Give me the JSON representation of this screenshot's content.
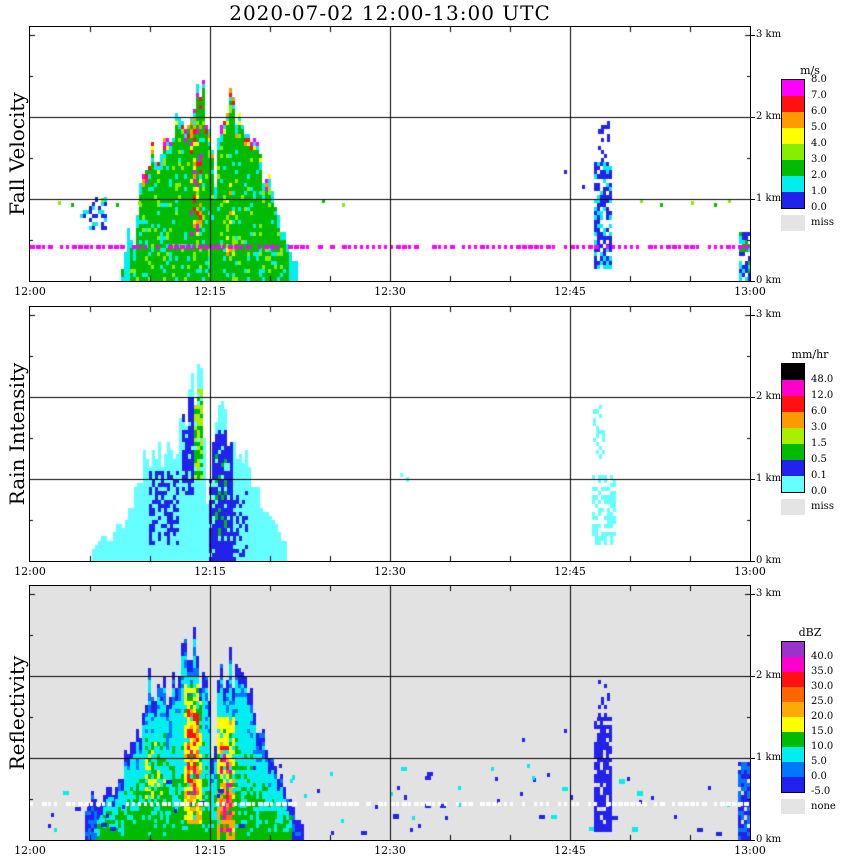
{
  "title": "2020-07-02  12:00-13:00 UTC",
  "x_axis": {
    "ticks": [
      "12:00",
      "12:15",
      "12:30",
      "12:45",
      "13:00"
    ],
    "start_minute": 0,
    "end_minute": 60
  },
  "y_axis": {
    "ticks": [
      "0 km",
      "1 km",
      "2 km",
      "3 km"
    ],
    "max_km": 3.1
  },
  "chart_data": {
    "type": "heatmap",
    "date": "2020-07-02",
    "time_utc_range": [
      "12:00",
      "13:00"
    ],
    "height_km_range": [
      0,
      3
    ],
    "panels": [
      {
        "id": "fall-velocity",
        "ylabel": "Fall Velocity",
        "style": "velocity",
        "background": "#ffffff",
        "colorbar": {
          "unit": "m/s",
          "label_mode": "edges",
          "labels": [
            "8.0",
            "7.0",
            "6.0",
            "5.0",
            "4.0",
            "3.0",
            "2.0",
            "1.0",
            "0.0"
          ],
          "colors": [
            "#ff00ff",
            "#ff1111",
            "#ff9900",
            "#ffff00",
            "#88ee00",
            "#00bb00",
            "#00eeee",
            "#2222ee"
          ],
          "miss_label": "miss",
          "miss_color": "#e4e4e4"
        },
        "bins": {
          "edges": [
            0,
            1,
            2,
            3,
            4,
            5,
            6,
            7,
            9
          ]
        },
        "echo": {
          "tops": [
            [
              7.6,
              0.15
            ],
            [
              8.1,
              0.55
            ],
            [
              8.6,
              0.4
            ],
            [
              9.0,
              1.0
            ],
            [
              9.4,
              1.5
            ],
            [
              9.8,
              1.2
            ],
            [
              10.2,
              1.75
            ],
            [
              10.6,
              1.45
            ],
            [
              11.0,
              1.9
            ],
            [
              11.4,
              1.55
            ],
            [
              11.8,
              1.65
            ],
            [
              12.2,
              2.0
            ],
            [
              12.6,
              1.75
            ],
            [
              13.0,
              2.1
            ],
            [
              13.4,
              2.3
            ],
            [
              13.8,
              2.2
            ],
            [
              14.2,
              2.35
            ],
            [
              14.6,
              2.1
            ],
            [
              15.0,
              1.7
            ],
            [
              15.3,
              0.9
            ],
            [
              15.6,
              1.6
            ],
            [
              16.0,
              2.05
            ],
            [
              16.4,
              2.2
            ],
            [
              16.8,
              1.95
            ],
            [
              17.2,
              2.05
            ],
            [
              17.6,
              1.8
            ],
            [
              18.0,
              1.9
            ],
            [
              18.4,
              1.6
            ],
            [
              18.8,
              1.7
            ],
            [
              19.2,
              1.35
            ],
            [
              19.6,
              1.25
            ],
            [
              20.0,
              1.05
            ],
            [
              20.5,
              0.85
            ],
            [
              21.0,
              0.6
            ],
            [
              21.6,
              0.35
            ],
            [
              22.3,
              0.12
            ]
          ],
          "cores": [
            {
              "t0": 13.3,
              "t1": 14.2,
              "h0": 0.5,
              "h1": 1.9,
              "vmin": 4.0,
              "vmax": 7.5,
              "prob": 0.45
            },
            {
              "t0": 16.3,
              "t1": 17.0,
              "h0": 0.3,
              "h1": 1.2,
              "vmin": 3.5,
              "vmax": 5.5,
              "prob": 0.25
            }
          ]
        },
        "extras": [
          {
            "op": "patch",
            "t0": 4.2,
            "t1": 6.3,
            "h0": 0.62,
            "h1": 1.02,
            "density": 0.45,
            "colors": [
              "#00eeee",
              "#2222ee"
            ]
          },
          {
            "op": "patch",
            "t0": 47.0,
            "t1": 48.3,
            "h0": 0.15,
            "h1": 1.45,
            "density": 0.7,
            "colors": [
              "#2222ee",
              "#2222ee",
              "#00eeee"
            ]
          },
          {
            "op": "patch",
            "t0": 47.3,
            "t1": 48.1,
            "h0": 1.45,
            "h1": 1.95,
            "density": 0.25,
            "colors": [
              "#2222ee"
            ]
          },
          {
            "op": "patch",
            "t0": 59.1,
            "t1": 60.0,
            "h0": 0.0,
            "h1": 0.6,
            "density": 0.8,
            "colors": [
              "#00bb00",
              "#00eeee",
              "#2222ee"
            ]
          },
          {
            "op": "dots",
            "points": [
              [
                2.3,
                0.93,
                "#88ee00"
              ],
              [
                3.4,
                0.9,
                "#00bb00"
              ],
              [
                5.9,
                0.96,
                "#88ee00"
              ],
              [
                7.2,
                0.9,
                "#00bb00"
              ],
              [
                9.0,
                0.93,
                "#88ee00"
              ],
              [
                24.3,
                0.95,
                "#00bb00"
              ],
              [
                26.0,
                0.9,
                "#88ee00"
              ],
              [
                44.5,
                1.3,
                "#2222ee"
              ],
              [
                46.0,
                1.12,
                "#2222ee"
              ],
              [
                50.8,
                0.95,
                "#88ee00"
              ],
              [
                52.5,
                0.9,
                "#00bb00"
              ],
              [
                55.1,
                0.93,
                "#88ee00"
              ],
              [
                57.0,
                0.9,
                "#00bb00"
              ],
              [
                58.2,
                0.95,
                "#88ee00"
              ]
            ]
          },
          {
            "op": "dashline",
            "h": 0.42,
            "color": "#ff00ff"
          }
        ]
      },
      {
        "id": "rain-intensity",
        "ylabel": "Rain Intensity",
        "style": "rain",
        "background": "#ffffff",
        "colorbar": {
          "unit": "mm/hr",
          "label_mode": "bottoms",
          "labels": [
            "48.0",
            "12.0",
            "6.0",
            "3.0",
            "1.5",
            "0.5",
            "0.1",
            "0.0"
          ],
          "colors": [
            "#000000",
            "#ff00cc",
            "#ff1111",
            "#ff9900",
            "#aaee00",
            "#00bb00",
            "#2222ee",
            "#66ffff"
          ],
          "miss_label": "miss",
          "miss_color": "#e4e4e4"
        },
        "bins": {
          "edges": [
            0,
            0.1,
            0.5,
            1.5,
            3,
            6,
            12,
            48,
            999
          ]
        },
        "echo": {
          "tops": [
            [
              5.2,
              0.12
            ],
            [
              6.0,
              0.3
            ],
            [
              6.6,
              0.2
            ],
            [
              7.2,
              0.45
            ],
            [
              7.8,
              0.35
            ],
            [
              8.4,
              0.7
            ],
            [
              9.0,
              0.95
            ],
            [
              9.5,
              1.2
            ],
            [
              10.0,
              1.05
            ],
            [
              10.5,
              1.35
            ],
            [
              11.0,
              1.2
            ],
            [
              11.5,
              1.5
            ],
            [
              12.0,
              1.35
            ],
            [
              12.4,
              1.6
            ],
            [
              12.8,
              1.8
            ],
            [
              13.2,
              1.95
            ],
            [
              13.6,
              2.1
            ],
            [
              14.0,
              2.25
            ],
            [
              14.4,
              1.9
            ],
            [
              14.75,
              0.4
            ],
            [
              15.1,
              1.5
            ],
            [
              15.5,
              1.6
            ],
            [
              16.0,
              1.7
            ],
            [
              16.5,
              1.5
            ],
            [
              17.0,
              1.3
            ],
            [
              17.5,
              1.12
            ],
            [
              18.0,
              1.18
            ],
            [
              18.5,
              0.9
            ],
            [
              19.0,
              0.75
            ],
            [
              19.5,
              0.6
            ],
            [
              20.0,
              0.48
            ],
            [
              20.7,
              0.3
            ],
            [
              21.4,
              0.14
            ]
          ],
          "cores": [
            {
              "t0": 12.5,
              "t1": 13.5,
              "h0": 0.8,
              "h1": 2.0,
              "vmin": 0.15,
              "vmax": 0.45,
              "prob": 0.8
            },
            {
              "t0": 13.5,
              "t1": 14.35,
              "h0": 1.0,
              "h1": 2.1,
              "vmin": 0.6,
              "vmax": 2.6,
              "prob": 0.85
            },
            {
              "t0": 9.8,
              "t1": 12.2,
              "h0": 0.2,
              "h1": 1.1,
              "vmin": 0.12,
              "vmax": 0.4,
              "prob": 0.5
            },
            {
              "t0": 14.9,
              "t1": 16.7,
              "h0": 0.0,
              "h1": 1.6,
              "vmin": 0.15,
              "vmax": 0.45,
              "prob": 0.85
            },
            {
              "t0": 15.3,
              "t1": 16.3,
              "h0": 0.3,
              "h1": 1.3,
              "vmin": 0.5,
              "vmax": 1.2,
              "prob": 0.35
            },
            {
              "t0": 16.8,
              "t1": 18.0,
              "h0": 0.0,
              "h1": 0.9,
              "vmin": 0.12,
              "vmax": 0.4,
              "prob": 0.4
            }
          ]
        },
        "extras": [
          {
            "op": "patch",
            "t0": 46.8,
            "t1": 48.6,
            "h0": 0.2,
            "h1": 1.05,
            "density": 0.5,
            "colors": [
              "#66ffff"
            ]
          },
          {
            "op": "patch",
            "t0": 46.9,
            "t1": 47.9,
            "h0": 1.25,
            "h1": 1.9,
            "density": 0.3,
            "colors": [
              "#66ffff"
            ]
          },
          {
            "op": "dots",
            "points": [
              [
                30.8,
                1.02,
                "#66ffff"
              ],
              [
                31.3,
                0.97,
                "#66ffff"
              ]
            ]
          }
        ]
      },
      {
        "id": "reflectivity",
        "ylabel": "Reflectivity",
        "style": "reflect",
        "background": "#e2e2e2",
        "colorbar": {
          "unit": "dBZ",
          "label_mode": "bottoms",
          "labels": [
            "40.0",
            "35.0",
            "30.0",
            "25.0",
            "20.0",
            "15.0",
            "10.0",
            "5.0",
            "0.0",
            "-5.0"
          ],
          "colors": [
            "#9933cc",
            "#ff00cc",
            "#ff1111",
            "#ff6600",
            "#ffaa00",
            "#ffff00",
            "#00bb00",
            "#00eeee",
            "#0077ff",
            "#2222ee"
          ],
          "miss_label": "none",
          "miss_color": "#e4e4e4"
        },
        "bins": {
          "edges": [
            -5,
            0,
            5,
            10,
            15,
            20,
            25,
            30,
            35,
            40,
            99
          ]
        },
        "echo": {
          "tops": [
            [
              4.6,
              0.3
            ],
            [
              5.2,
              0.55
            ],
            [
              5.8,
              0.35
            ],
            [
              6.4,
              0.7
            ],
            [
              7.0,
              0.5
            ],
            [
              7.6,
              0.85
            ],
            [
              8.2,
              1.15
            ],
            [
              8.8,
              1.5
            ],
            [
              9.3,
              1.3
            ],
            [
              9.8,
              1.85
            ],
            [
              10.3,
              1.6
            ],
            [
              10.8,
              2.0
            ],
            [
              11.3,
              1.75
            ],
            [
              11.8,
              1.85
            ],
            [
              12.3,
              2.1
            ],
            [
              12.8,
              2.25
            ],
            [
              13.3,
              2.35
            ],
            [
              13.8,
              2.2
            ],
            [
              14.3,
              2.0
            ],
            [
              14.8,
              1.6
            ],
            [
              15.2,
              0.9
            ],
            [
              15.6,
              1.7
            ],
            [
              16.0,
              2.1
            ],
            [
              16.4,
              2.25
            ],
            [
              16.8,
              2.0
            ],
            [
              17.2,
              1.85
            ],
            [
              17.6,
              1.95
            ],
            [
              18.0,
              1.7
            ],
            [
              18.5,
              1.6
            ],
            [
              19.0,
              1.4
            ],
            [
              19.5,
              1.2
            ],
            [
              20.0,
              1.0
            ],
            [
              20.6,
              0.8
            ],
            [
              21.2,
              0.55
            ],
            [
              22.0,
              0.3
            ],
            [
              22.8,
              0.12
            ]
          ],
          "cores": [
            {
              "t0": 12.7,
              "t1": 14.3,
              "h0": 0.2,
              "h1": 1.9,
              "add": 9,
              "prob": 0.75
            },
            {
              "t0": 13.0,
              "t1": 13.9,
              "h0": 0.5,
              "h1": 1.6,
              "add": 16,
              "prob": 0.45
            },
            {
              "t0": 15.4,
              "t1": 16.9,
              "h0": 0.0,
              "h1": 1.5,
              "add": 10,
              "prob": 0.7
            },
            {
              "t0": 15.8,
              "t1": 16.6,
              "h0": 0.1,
              "h1": 1.2,
              "add": 16,
              "prob": 0.5
            },
            {
              "t0": 9.5,
              "t1": 11.2,
              "h0": 0.4,
              "h1": 1.3,
              "add": 6,
              "prob": 0.4
            }
          ]
        },
        "extras": [
          {
            "op": "scatter",
            "t0": 0.5,
            "t1": 59.5,
            "h0": 0.05,
            "h1": 0.9,
            "count": 85,
            "colors": [
              "#2222ee",
              "#2222ee",
              "#00eeee"
            ]
          },
          {
            "op": "patch",
            "t0": 47.0,
            "t1": 48.3,
            "h0": 0.1,
            "h1": 1.5,
            "density": 0.8,
            "colors": [
              "#2222ee"
            ]
          },
          {
            "op": "patch",
            "t0": 47.3,
            "t1": 48.1,
            "h0": 1.5,
            "h1": 1.95,
            "density": 0.25,
            "colors": [
              "#2222ee"
            ]
          },
          {
            "op": "patch",
            "t0": 59.0,
            "t1": 60.0,
            "h0": 0.0,
            "h1": 0.95,
            "density": 0.85,
            "colors": [
              "#2222ee",
              "#0077ff"
            ]
          },
          {
            "op": "dots",
            "points": [
              [
                44.5,
                1.3,
                "#2222ee"
              ],
              [
                41.0,
                1.2,
                "#2222ee"
              ]
            ]
          },
          {
            "op": "dashline",
            "h": 0.44,
            "color": "#ffffff"
          }
        ]
      }
    ]
  }
}
